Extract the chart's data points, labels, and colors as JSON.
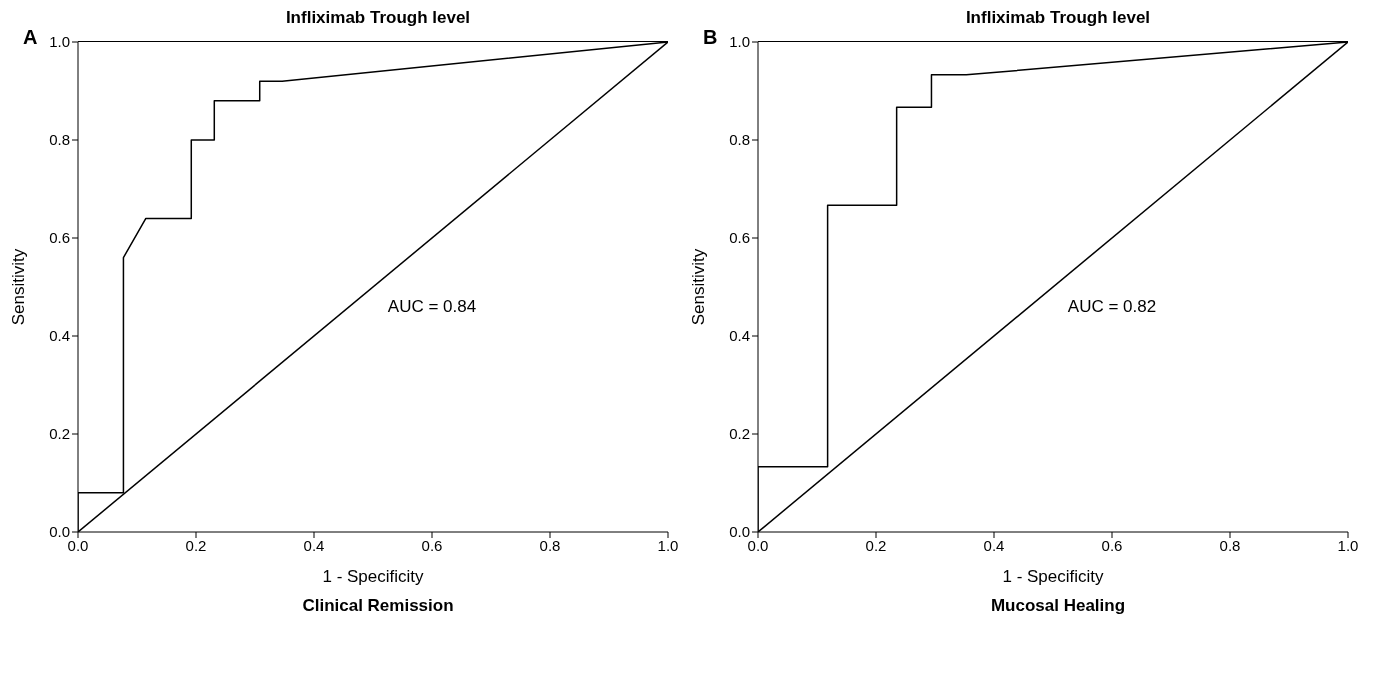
{
  "chart_data": [
    {
      "type": "line",
      "title": "Infliximab Trough level",
      "xlabel": "1 - Specificity",
      "ylabel": "Sensitivity",
      "annotations": [
        "A",
        "AUC = 0.84",
        "Clinical Remission"
      ],
      "xlim": [
        0,
        1
      ],
      "ylim": [
        0,
        1
      ],
      "xticks": [
        {
          "value": 0,
          "label": "0.0"
        },
        {
          "value": 0.2,
          "label": "0.2"
        },
        {
          "value": 0.4,
          "label": "0.4"
        },
        {
          "value": 0.6,
          "label": "0.6"
        },
        {
          "value": 0.8,
          "label": "0.8"
        },
        {
          "value": 1,
          "label": "1.0"
        }
      ],
      "yticks": [
        {
          "value": 0,
          "label": "0.0"
        },
        {
          "value": 0.2,
          "label": "0.2"
        },
        {
          "value": 0.4,
          "label": "0.4"
        },
        {
          "value": 0.6,
          "label": "0.6"
        },
        {
          "value": 0.8,
          "label": "0.8"
        },
        {
          "value": 1,
          "label": "1.0"
        }
      ],
      "grid": false,
      "series": [
        {
          "color": "#000000",
          "x": [
            0,
            0,
            0.077,
            0.077,
            0.115,
            0.192,
            0.192,
            0.231,
            0.231,
            0.308,
            0.308,
            0.346,
            1
          ],
          "values": [
            0,
            0.08,
            0.08,
            0.56,
            0.64,
            0.64,
            0.8,
            0.8,
            0.88,
            0.88,
            0.92,
            0.92,
            1
          ]
        },
        {
          "color": "#000000",
          "x": [
            0,
            1
          ],
          "values": [
            0,
            1
          ]
        }
      ]
    },
    {
      "type": "line",
      "title": "Infliximab Trough level",
      "xlabel": "1 - Specificity",
      "ylabel": "Sensitivity",
      "annotations": [
        "B",
        "AUC = 0.82",
        "Mucosal Healing"
      ],
      "xlim": [
        0,
        1
      ],
      "ylim": [
        0,
        1
      ],
      "xticks": [
        {
          "value": 0,
          "label": "0.0"
        },
        {
          "value": 0.2,
          "label": "0.2"
        },
        {
          "value": 0.4,
          "label": "0.4"
        },
        {
          "value": 0.6,
          "label": "0.6"
        },
        {
          "value": 0.8,
          "label": "0.8"
        },
        {
          "value": 1,
          "label": "1.0"
        }
      ],
      "yticks": [
        {
          "value": 0,
          "label": "0.0"
        },
        {
          "value": 0.2,
          "label": "0.2"
        },
        {
          "value": 0.4,
          "label": "0.4"
        },
        {
          "value": 0.6,
          "label": "0.6"
        },
        {
          "value": 0.8,
          "label": "0.8"
        },
        {
          "value": 1,
          "label": "1.0"
        }
      ],
      "grid": false,
      "series": [
        {
          "color": "#000000",
          "x": [
            0,
            0,
            0.118,
            0.118,
            0.235,
            0.235,
            0.294,
            0.294,
            0.353,
            1
          ],
          "values": [
            0,
            0.133,
            0.133,
            0.667,
            0.667,
            0.867,
            0.867,
            0.933,
            0.933,
            1
          ]
        },
        {
          "color": "#000000",
          "x": [
            0,
            1
          ],
          "values": [
            0,
            1
          ]
        }
      ]
    }
  ]
}
